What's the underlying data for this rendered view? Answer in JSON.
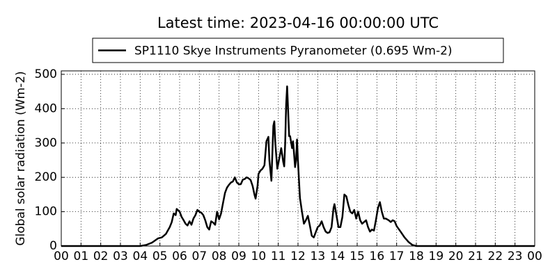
{
  "chart_data": {
    "type": "line",
    "title": "Latest time: 2023-04-16 00:00:00 UTC",
    "y_label": "Global solar radiation (Wm-2)",
    "x": [
      0,
      1,
      2,
      3,
      4,
      4.3,
      4.6,
      4.9,
      5.1,
      5.3,
      5.5,
      5.6,
      5.7,
      5.8,
      5.85,
      6.0,
      6.1,
      6.2,
      6.3,
      6.4,
      6.5,
      6.6,
      6.7,
      6.8,
      6.9,
      7.0,
      7.1,
      7.2,
      7.3,
      7.4,
      7.5,
      7.6,
      7.7,
      7.8,
      7.9,
      8.0,
      8.1,
      8.2,
      8.3,
      8.4,
      8.5,
      8.6,
      8.7,
      8.8,
      8.9,
      9.0,
      9.1,
      9.2,
      9.3,
      9.4,
      9.5,
      9.6,
      9.7,
      9.8,
      9.85,
      9.95,
      10.0,
      10.1,
      10.2,
      10.3,
      10.4,
      10.5,
      10.55,
      10.65,
      10.75,
      10.8,
      10.85,
      10.95,
      11.05,
      11.15,
      11.25,
      11.3,
      11.35,
      11.4,
      11.45,
      11.55,
      11.6,
      11.7,
      11.75,
      11.8,
      11.85,
      11.9,
      11.95,
      12.0,
      12.1,
      12.2,
      12.3,
      12.4,
      12.5,
      12.6,
      12.7,
      12.8,
      12.9,
      13.0,
      13.1,
      13.2,
      13.3,
      13.4,
      13.5,
      13.6,
      13.7,
      13.8,
      13.85,
      13.95,
      14.05,
      14.15,
      14.25,
      14.35,
      14.45,
      14.55,
      14.65,
      14.75,
      14.85,
      14.95,
      15.05,
      15.15,
      15.25,
      15.35,
      15.45,
      15.55,
      15.65,
      15.75,
      15.85,
      15.95,
      16.05,
      16.15,
      16.25,
      16.35,
      16.45,
      16.6,
      16.7,
      16.8,
      16.9,
      17.0,
      17.2,
      17.4,
      17.6,
      17.8,
      18.0,
      20,
      22,
      24
    ],
    "series": [
      {
        "name": "SP1110 Skye Instruments Pyranometer (0.695 Wm-2)",
        "color": "#000000",
        "values": [
          0,
          0,
          0,
          0,
          0,
          3,
          10,
          22,
          25,
          35,
          55,
          70,
          95,
          90,
          108,
          100,
          85,
          75,
          65,
          60,
          72,
          62,
          80,
          90,
          105,
          100,
          97,
          90,
          75,
          55,
          48,
          72,
          68,
          62,
          100,
          78,
          95,
          125,
          155,
          170,
          178,
          185,
          188,
          200,
          185,
          180,
          180,
          193,
          195,
          200,
          197,
          192,
          175,
          148,
          138,
          175,
          210,
          220,
          225,
          235,
          305,
          318,
          250,
          190,
          350,
          363,
          300,
          225,
          255,
          285,
          245,
          232,
          300,
          412,
          465,
          320,
          320,
          285,
          305,
          270,
          230,
          250,
          310,
          245,
          140,
          100,
          65,
          75,
          88,
          60,
          30,
          25,
          40,
          55,
          60,
          72,
          55,
          42,
          38,
          40,
          55,
          110,
          122,
          90,
          55,
          55,
          85,
          150,
          145,
          120,
          100,
          95,
          105,
          80,
          100,
          75,
          65,
          70,
          75,
          55,
          42,
          48,
          45,
          75,
          110,
          128,
          100,
          80,
          80,
          75,
          70,
          75,
          72,
          58,
          42,
          25,
          12,
          3,
          0,
          0,
          0,
          0
        ]
      }
    ],
    "xlim": [
      0,
      24
    ],
    "xticks": [
      {
        "value": 0,
        "label": "00"
      },
      {
        "value": 1,
        "label": "01"
      },
      {
        "value": 2,
        "label": "02"
      },
      {
        "value": 3,
        "label": "03"
      },
      {
        "value": 4,
        "label": "04"
      },
      {
        "value": 5,
        "label": "05"
      },
      {
        "value": 6,
        "label": "06"
      },
      {
        "value": 7,
        "label": "07"
      },
      {
        "value": 8,
        "label": "08"
      },
      {
        "value": 9,
        "label": "09"
      },
      {
        "value": 10,
        "label": "10"
      },
      {
        "value": 11,
        "label": "11"
      },
      {
        "value": 12,
        "label": "12"
      },
      {
        "value": 13,
        "label": "13"
      },
      {
        "value": 14,
        "label": "14"
      },
      {
        "value": 15,
        "label": "15"
      },
      {
        "value": 16,
        "label": "16"
      },
      {
        "value": 17,
        "label": "17"
      },
      {
        "value": 18,
        "label": "18"
      },
      {
        "value": 19,
        "label": "19"
      },
      {
        "value": 20,
        "label": "20"
      },
      {
        "value": 21,
        "label": "21"
      },
      {
        "value": 22,
        "label": "22"
      },
      {
        "value": 23,
        "label": "23"
      },
      {
        "value": 24,
        "label": "00"
      }
    ],
    "ylim": [
      0,
      510
    ],
    "yticks": [
      0,
      100,
      200,
      300,
      400,
      500
    ],
    "grid": true,
    "legend": "upper center"
  }
}
